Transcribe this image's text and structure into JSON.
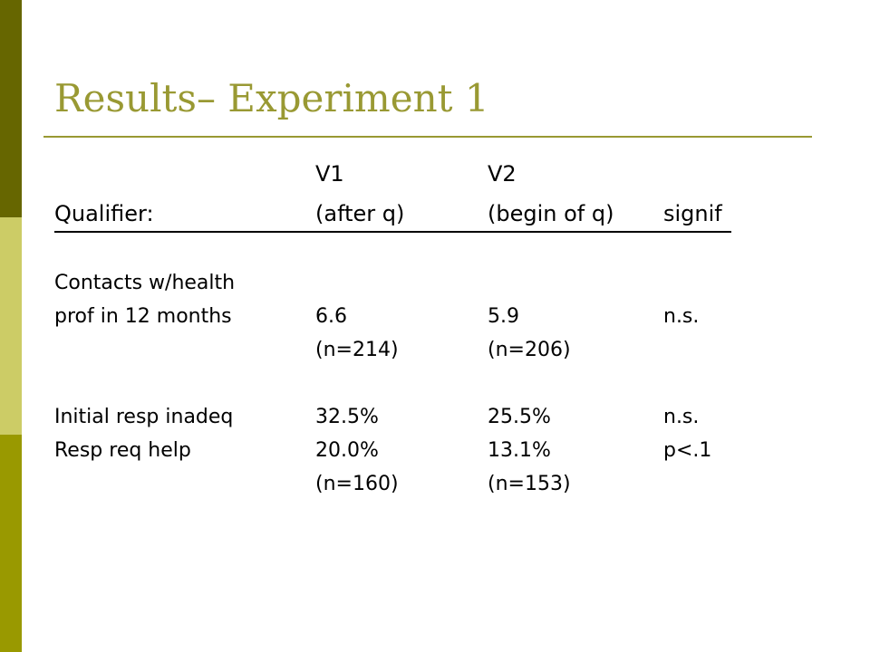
{
  "title": "Results– Experiment 1",
  "header": {
    "row1": {
      "v1": "V1",
      "v2": "V2"
    },
    "row2": {
      "qualifier": "Qualifier:",
      "v1": "(after q)",
      "v2": "(begin of q)",
      "signif": "signif"
    }
  },
  "rows": [
    {
      "label": "Contacts w/health"
    },
    {
      "label": "prof in 12 months",
      "v1": "6.6",
      "v2": "5.9",
      "signif": "n.s."
    },
    {
      "v1": "(n=214)",
      "v2": "(n=206)"
    },
    {
      "label": "Initial resp inadeq",
      "v1": "32.5%",
      "v2": "25.5%",
      "signif": "n.s."
    },
    {
      "label": "Resp req help",
      "v1": "20.0%",
      "v2": "13.1%",
      "signif": "p<.1"
    },
    {
      "v1": "(n=160)",
      "v2": "(n=153)"
    }
  ],
  "colors": {
    "bar_top": "#666600",
    "bar_mid": "#cccc66",
    "bar_bot": "#999900",
    "title": "#999933"
  }
}
